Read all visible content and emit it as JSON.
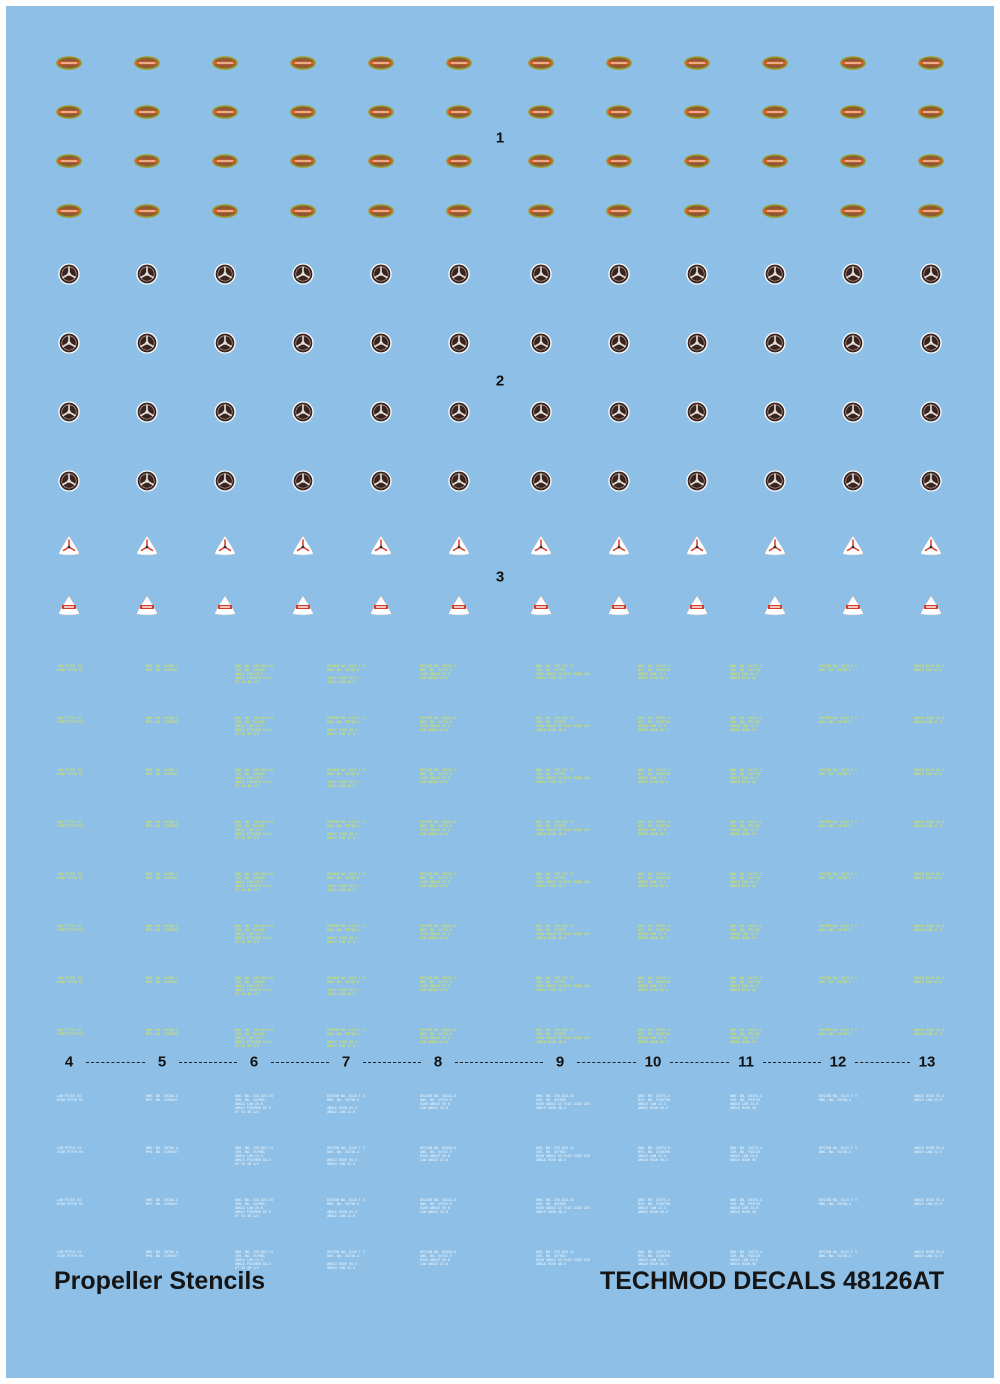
{
  "colors": {
    "background": "#8ec0e7",
    "oval_fill": "#8f5b32",
    "oval_rim": "#9a9a2a",
    "oval_band": "#e25a2e",
    "round_dark": "#3a2420",
    "round_ring": "#ffffff",
    "triangle_fill": "#ffffff",
    "triangle_accent": "#d63a28",
    "stencil_yellow": "#e0e83a",
    "stencil_white": "#f4f8fb"
  },
  "group_labels": {
    "one": "1",
    "two": "2",
    "three": "3"
  },
  "stencil_numbers": [
    "4",
    "5",
    "6",
    "7",
    "8",
    "9",
    "10",
    "11",
    "12",
    "13"
  ],
  "stencil_text": {
    "c4": "LOW PITCH 24\nHIGH PITCH 55",
    "c5": "DWG. NO. 20346-4\nMFG. NO. 5156457",
    "c6": "DWG. NO. 233-023-14\nSER. NO. 457981\nANGLE LOW 23.5\nANGLE FEATHER 82.5\nHT 34 48 1/2",
    "c7": "DESIGN NO. 6113 T 3\nDWG. NO. 33736-4\n\nANGLE HIGH 55.4\nANGLE LOW 22.5",
    "c8": "DESIGN NO. 6353A-6\nDWG. NO. 33752-5\nHIGH ANGLE 55.0\nLOW ANGLE 22.0",
    "c9": "DWG. NO. 233-023-15\nSER. NO. 457981\nHIGH ANGLE 55 FLAT SIDE 47A\nANGLE HIGH 48.5",
    "c10": "DWG. NO. 20374-4\nMFG. NO. 5156790\nANGLE LOW 21.5\nANGLE HIGH 56.4",
    "c11": "DWG. NO. 20374-4\nSER. NO. P33720\nANGLE LOW 24.0\nANGLE HIGH 56",
    "c12": "DESIGN NO. 6113 T 3\nDWG. NO. 33736-4",
    "c13": "ANGLE HIGH 55.4\nANGLE LOW 22.5"
  },
  "footer": {
    "title": "Propeller Stencils",
    "product": "TECHMOD DECALS 48126AT"
  }
}
